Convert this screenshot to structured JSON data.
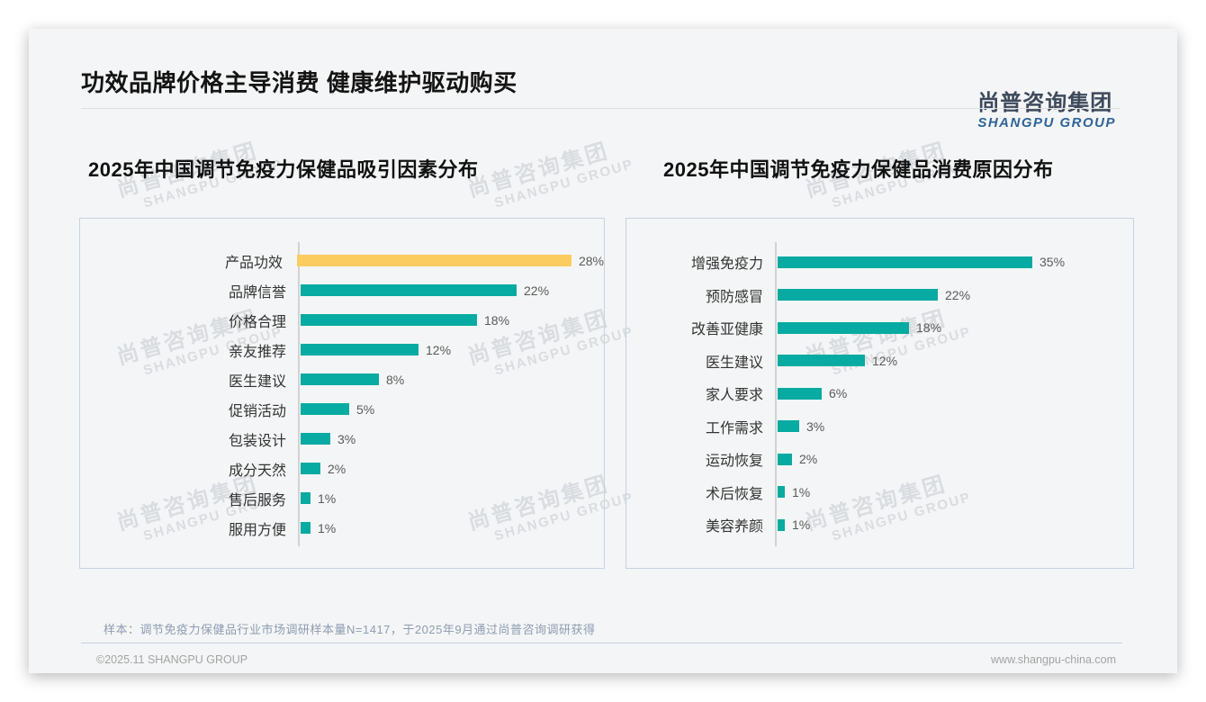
{
  "page": {
    "title": "功效品牌价格主导消费 健康维护驱动购买",
    "logo": {
      "cn": "尚普咨询集团",
      "en": "SHANGPU GROUP"
    },
    "watermark": {
      "cn": "尚普咨询集团",
      "en": "SHANGPU GROUP"
    },
    "footnote": "样本：调节免疫力保健品行业市场调研样本量N=1417，于2025年9月通过尚普咨询调研获得",
    "footer": {
      "copyright": "©2025.11 SHANGPU GROUP",
      "website": "www.shangpu-china.com"
    }
  },
  "colors": {
    "bar_teal": "#07aba2",
    "bar_yellow": "#fbcd60",
    "logo_cn": "#3d4a5c",
    "logo_en": "#2f6496"
  },
  "chart_data": [
    {
      "type": "bar",
      "orientation": "horizontal",
      "title": "2025年中国调节免疫力保健品吸引因素分布",
      "categories": [
        "产品功效",
        "品牌信誉",
        "价格合理",
        "亲友推荐",
        "医生建议",
        "促销活动",
        "包装设计",
        "成分天然",
        "售后服务",
        "服用方便"
      ],
      "values": [
        28,
        22,
        18,
        12,
        8,
        5,
        3,
        2,
        1,
        1
      ],
      "value_labels": [
        "28%",
        "22%",
        "18%",
        "12%",
        "8%",
        "5%",
        "3%",
        "2%",
        "1%",
        "1%"
      ],
      "unit": "%",
      "xlim": [
        0,
        28
      ],
      "grid": false,
      "legend": "none",
      "bar_color": "#07aba2",
      "highlight": {
        "index": 0,
        "color": "#fbcd60"
      }
    },
    {
      "type": "bar",
      "orientation": "horizontal",
      "title": "2025年中国调节免疫力保健品消费原因分布",
      "categories": [
        "增强免疫力",
        "预防感冒",
        "改善亚健康",
        "医生建议",
        "家人要求",
        "工作需求",
        "运动恢复",
        "术后恢复",
        "美容养颜"
      ],
      "values": [
        35,
        22,
        18,
        12,
        6,
        3,
        2,
        1,
        1
      ],
      "value_labels": [
        "35%",
        "22%",
        "18%",
        "12%",
        "6%",
        "3%",
        "2%",
        "1%",
        "1%"
      ],
      "unit": "%",
      "xlim": [
        0,
        35
      ],
      "grid": false,
      "legend": "none",
      "bar_color": "#07aba2",
      "highlight": null
    }
  ]
}
